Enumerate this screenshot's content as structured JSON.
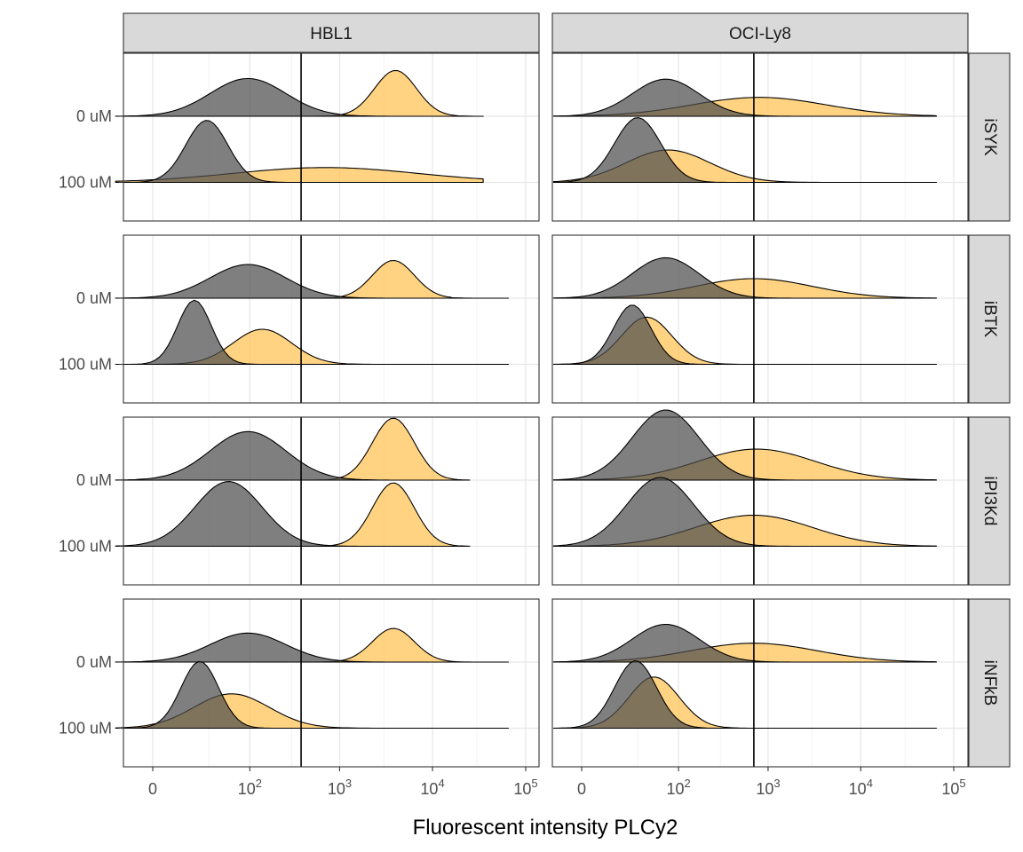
{
  "chart_data": {
    "type": "area",
    "xlabel": "Fluorescent intensity PLCy2",
    "ylabel": "",
    "x_scale": "biexponential (0 to 1e5)",
    "x_ticks": [
      {
        "value": 0,
        "base": "0",
        "exp": ""
      },
      {
        "value": 100,
        "base": "10",
        "exp": "2"
      },
      {
        "value": 1000,
        "base": "10",
        "exp": "3"
      },
      {
        "value": 10000,
        "base": "10",
        "exp": "4"
      },
      {
        "value": 100000,
        "base": "10",
        "exp": "5"
      }
    ],
    "y_categories": [
      "0 uM",
      "100 uM"
    ],
    "columns": [
      "HBL1",
      "OCI-Ly8"
    ],
    "rows": [
      "iSYK",
      "iBTK",
      "iPI3Kd",
      "iNFkB"
    ],
    "series_colors": {
      "dark": "#4d4d4d",
      "orange": "#ffc04d"
    },
    "grid": true,
    "legend": "none",
    "thresholds": {
      "HBL1": 380,
      "OCI-Ly8": 700
    },
    "panels": [
      {
        "col": "HBL1",
        "row": "iSYK",
        "ridges": [
          {
            "dose": "0 uM",
            "dark": {
              "peak": 95,
              "height": 0.56,
              "spread": 0.9
            },
            "orange": {
              "peak": 4000,
              "height": 0.68,
              "spread": 0.5
            },
            "range": [
              -15,
              35000
            ]
          },
          {
            "dose": "100 uM",
            "dark": {
              "peak": 28,
              "height": 0.92,
              "spread": 0.5
            },
            "orange": {
              "peak": 700,
              "height": 0.22,
              "spread": 2.2
            },
            "range": [
              -15,
              35000
            ]
          }
        ]
      },
      {
        "col": "HBL1",
        "row": "iBTK",
        "ridges": [
          {
            "dose": "0 uM",
            "dark": {
              "peak": 95,
              "height": 0.5,
              "spread": 0.9
            },
            "orange": {
              "peak": 3800,
              "height": 0.56,
              "spread": 0.5
            },
            "range": [
              -15,
              65000
            ]
          },
          {
            "dose": "100 uM",
            "dark": {
              "peak": 18,
              "height": 0.95,
              "spread": 0.4
            },
            "orange": {
              "peak": 140,
              "height": 0.52,
              "spread": 0.7
            },
            "range": [
              -15,
              65000
            ]
          }
        ]
      },
      {
        "col": "HBL1",
        "row": "iPI3Kd",
        "ridges": [
          {
            "dose": "0 uM",
            "dark": {
              "peak": 95,
              "height": 0.72,
              "spread": 0.9
            },
            "orange": {
              "peak": 3800,
              "height": 0.92,
              "spread": 0.5
            },
            "range": [
              -15,
              25000
            ]
          },
          {
            "dose": "100 uM",
            "dark": {
              "peak": 55,
              "height": 0.96,
              "spread": 0.8
            },
            "orange": {
              "peak": 3800,
              "height": 0.94,
              "spread": 0.5
            },
            "range": [
              -15,
              25000
            ]
          }
        ]
      },
      {
        "col": "HBL1",
        "row": "iNFkB",
        "ridges": [
          {
            "dose": "0 uM",
            "dark": {
              "peak": 95,
              "height": 0.43,
              "spread": 0.9
            },
            "orange": {
              "peak": 3800,
              "height": 0.5,
              "spread": 0.5
            },
            "range": [
              -15,
              65000
            ]
          },
          {
            "dose": "100 uM",
            "dark": {
              "peak": 22,
              "height": 0.99,
              "spread": 0.45
            },
            "orange": {
              "peak": 60,
              "height": 0.51,
              "spread": 0.9
            },
            "range": [
              -15,
              65000
            ]
          }
        ]
      },
      {
        "col": "OCI-Ly8",
        "row": "iSYK",
        "ridges": [
          {
            "dose": "0 uM",
            "dark": {
              "peak": 70,
              "height": 0.55,
              "spread": 0.8
            },
            "orange": {
              "peak": 800,
              "height": 0.28,
              "spread": 1.6
            },
            "range": [
              -10,
              65000
            ]
          },
          {
            "dose": "100 uM",
            "dark": {
              "peak": 30,
              "height": 0.96,
              "spread": 0.55
            },
            "orange": {
              "peak": 75,
              "height": 0.48,
              "spread": 1.0
            },
            "range": [
              -10,
              65000
            ]
          }
        ]
      },
      {
        "col": "OCI-Ly8",
        "row": "iBTK",
        "ridges": [
          {
            "dose": "0 uM",
            "dark": {
              "peak": 70,
              "height": 0.6,
              "spread": 0.8
            },
            "orange": {
              "peak": 700,
              "height": 0.29,
              "spread": 1.4
            },
            "range": [
              -10,
              65000
            ]
          },
          {
            "dose": "100 uM",
            "dark": {
              "peak": 25,
              "height": 0.88,
              "spread": 0.45
            },
            "orange": {
              "peak": 40,
              "height": 0.7,
              "spread": 0.6
            },
            "range": [
              -10,
              65000
            ]
          }
        ]
      },
      {
        "col": "OCI-Ly8",
        "row": "iPI3Kd",
        "ridges": [
          {
            "dose": "0 uM",
            "dark": {
              "peak": 70,
              "height": 1.04,
              "spread": 0.8
            },
            "orange": {
              "peak": 750,
              "height": 0.46,
              "spread": 1.4
            },
            "range": [
              -10,
              65000
            ]
          },
          {
            "dose": "100 uM",
            "dark": {
              "peak": 60,
              "height": 1.02,
              "spread": 0.8
            },
            "orange": {
              "peak": 700,
              "height": 0.46,
              "spread": 1.4
            },
            "range": [
              -10,
              65000
            ]
          }
        ]
      },
      {
        "col": "OCI-Ly8",
        "row": "iNFkB",
        "ridges": [
          {
            "dose": "0 uM",
            "dark": {
              "peak": 70,
              "height": 0.56,
              "spread": 0.8
            },
            "orange": {
              "peak": 700,
              "height": 0.28,
              "spread": 1.5
            },
            "range": [
              -10,
              65000
            ]
          },
          {
            "dose": "100 uM",
            "dark": {
              "peak": 28,
              "height": 1.0,
              "spread": 0.5
            },
            "orange": {
              "peak": 50,
              "height": 0.76,
              "spread": 0.6
            },
            "range": [
              -10,
              65000
            ]
          }
        ]
      }
    ]
  }
}
